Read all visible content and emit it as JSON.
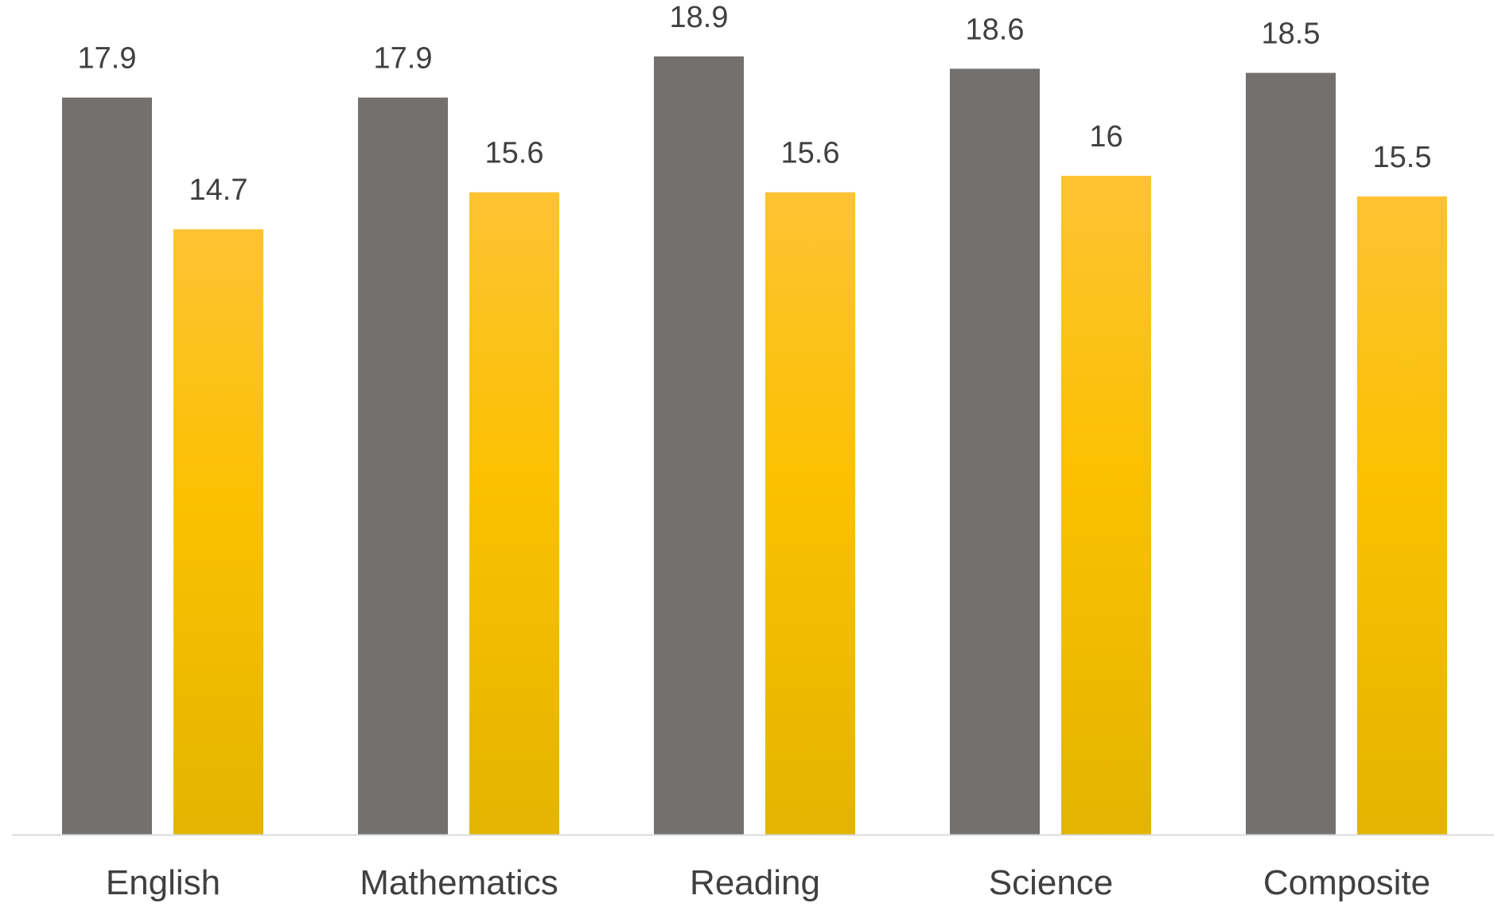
{
  "chart_data": {
    "type": "bar",
    "categories": [
      "English",
      "Mathematics",
      "Reading",
      "Science",
      "Composite"
    ],
    "series": [
      {
        "values": [
          17.9,
          17.9,
          18.9,
          18.6,
          18.5
        ],
        "color": "#73706f"
      },
      {
        "values": [
          14.7,
          15.6,
          15.6,
          16,
          15.5
        ],
        "color": "#fec000",
        "gradient": [
          "#fec233",
          "#fbc100",
          "#e3b400"
        ]
      }
    ],
    "value_labels": [
      [
        "17.9",
        "17.9",
        "18.9",
        "18.6",
        "18.5"
      ],
      [
        "14.7",
        "15.6",
        "15.6",
        "16",
        "15.5"
      ]
    ],
    "ylim": [
      0,
      19.4
    ],
    "grid": false,
    "legend": "none",
    "baseline_color": "#d9d9d9",
    "label_color": "#404040"
  }
}
